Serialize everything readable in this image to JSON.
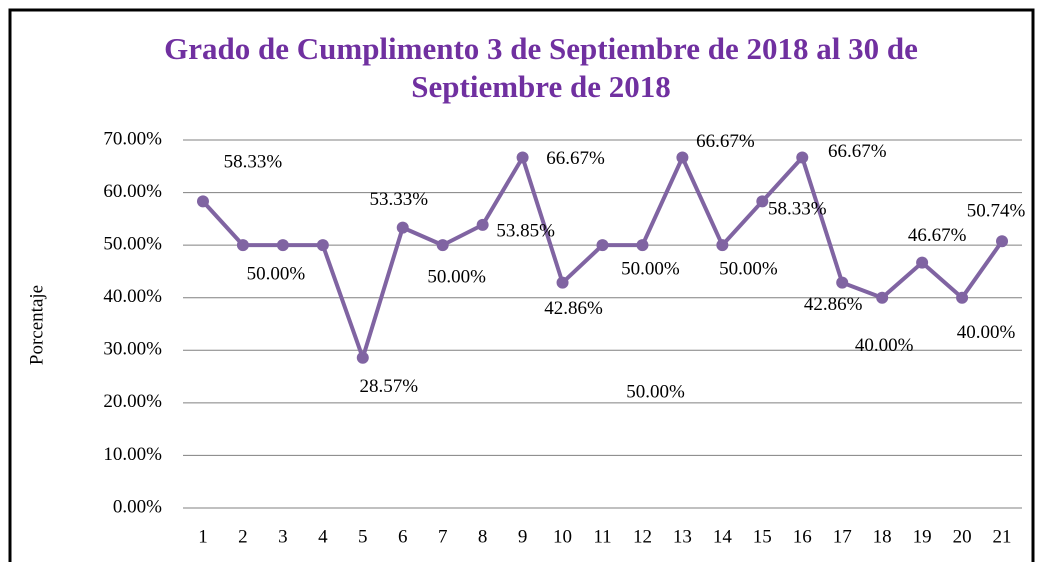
{
  "chart_data": {
    "type": "line",
    "title": "Grado de Cumplimento 3 de Septiembre de 2018 al 30 de Septiembre de 2018",
    "y_label": "Porcentaje",
    "categories": [
      "1",
      "2",
      "3",
      "4",
      "5",
      "6",
      "7",
      "8",
      "9",
      "10",
      "11",
      "12",
      "13",
      "14",
      "15",
      "16",
      "17",
      "18",
      "19",
      "20",
      "21"
    ],
    "series": [
      {
        "name": "Grado de Cumplimento",
        "color": "#8064a2",
        "values": [
          58.33,
          50,
          50,
          50,
          28.57,
          53.33,
          50,
          53.85,
          66.67,
          42.86,
          50,
          50,
          66.67,
          50,
          58.33,
          66.67,
          42.86,
          40,
          46.67,
          40,
          50.74
        ],
        "value_labels": [
          "58.33%",
          "50.00%",
          null,
          null,
          "28.57%",
          "53.33%",
          "50.00%",
          "53.85%",
          "66.67%",
          "42.86%",
          "50.00%",
          "50.00%",
          "66.67%",
          "50.00%",
          "58.33%",
          "66.67%",
          "42.86%",
          "40.00%",
          "46.67%",
          "40.00%",
          "50.74%"
        ]
      }
    ],
    "ylim": [
      0,
      70
    ],
    "yticks": [
      {
        "value": 0,
        "label": "0.00%"
      },
      {
        "value": 10,
        "label": "10.00%"
      },
      {
        "value": 20,
        "label": "20.00%"
      },
      {
        "value": 30,
        "label": "30.00%"
      },
      {
        "value": 40,
        "label": "40.00%"
      },
      {
        "value": 50,
        "label": "50.00%"
      },
      {
        "value": 60,
        "label": "60.00%"
      },
      {
        "value": 70,
        "label": "70.00%"
      }
    ],
    "grid": true
  }
}
